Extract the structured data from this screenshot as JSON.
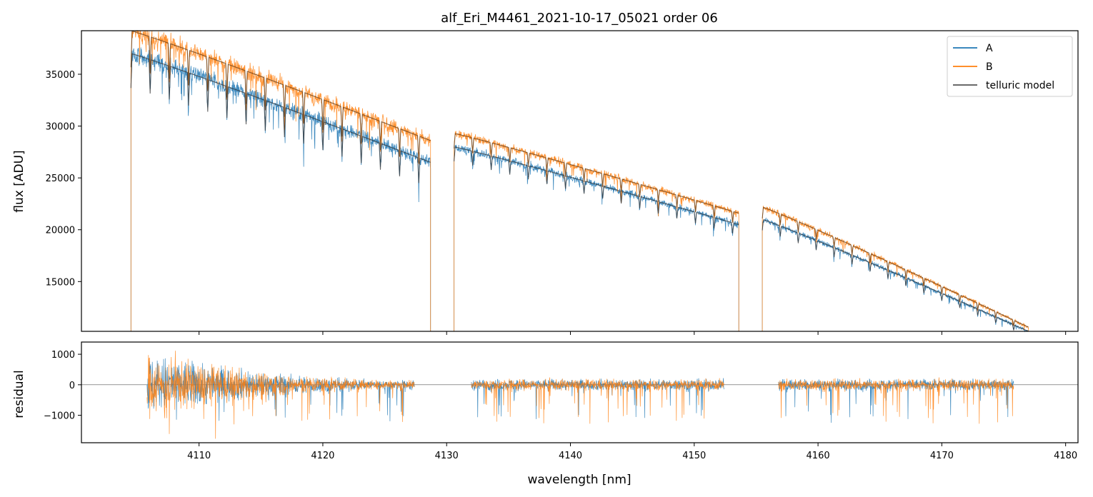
{
  "chart_data": [
    {
      "type": "line",
      "title": "alf_Eri_M4461_2021-10-17_05021  order 06",
      "xlabel": "",
      "ylabel": "flux [ADU]",
      "xlim": [
        4100.5,
        4181
      ],
      "ylim": [
        10200,
        39200
      ],
      "xticks": [
        4110,
        4120,
        4130,
        4140,
        4150,
        4160,
        4170,
        4180
      ],
      "yticks": [
        15000,
        20000,
        25000,
        30000,
        35000
      ],
      "ytick_labels": [
        "15000",
        "20000",
        "25000",
        "30000",
        "35000"
      ],
      "grid": false,
      "legend_position": "top-right",
      "segments": [
        {
          "x": [
            4104.5,
            4128.7
          ],
          "A_flux": [
            37000,
            26500
          ],
          "B_flux": [
            39200,
            28600
          ]
        },
        {
          "x": [
            4130.6,
            4153.6
          ],
          "A_flux": [
            28000,
            20500
          ],
          "B_flux": [
            29300,
            21600
          ]
        },
        {
          "x": [
            4155.5,
            4177.0
          ],
          "A_flux": [
            21000,
            10200
          ],
          "B_flux": [
            22200,
            10600
          ]
        }
      ],
      "series": [
        {
          "name": "A",
          "color": "#1f77b4"
        },
        {
          "name": "B",
          "color": "#ff7f0e"
        },
        {
          "name": "telluric model",
          "color": "#555555"
        }
      ]
    },
    {
      "type": "line",
      "xlabel": "wavelength [nm]",
      "ylabel": "residual",
      "xlim": [
        4100.5,
        4181
      ],
      "ylim": [
        -1900,
        1400
      ],
      "xticks": [
        4110,
        4120,
        4130,
        4140,
        4150,
        4160,
        4170,
        4180
      ],
      "xtick_labels": [
        "4110",
        "4120",
        "4130",
        "4140",
        "4150",
        "4160",
        "4170",
        "4180"
      ],
      "yticks": [
        1000,
        0,
        -1000
      ],
      "ytick_labels": [
        "1000",
        "0",
        "−1000"
      ],
      "zero_line": true,
      "segments": [
        {
          "x": [
            4105.8,
            4127.4
          ]
        },
        {
          "x": [
            4132.0,
            4152.4
          ]
        },
        {
          "x": [
            4156.8,
            4175.8
          ]
        }
      ],
      "series": [
        {
          "name": "A",
          "color": "#1f77b4"
        },
        {
          "name": "B",
          "color": "#ff7f0e"
        }
      ]
    }
  ]
}
